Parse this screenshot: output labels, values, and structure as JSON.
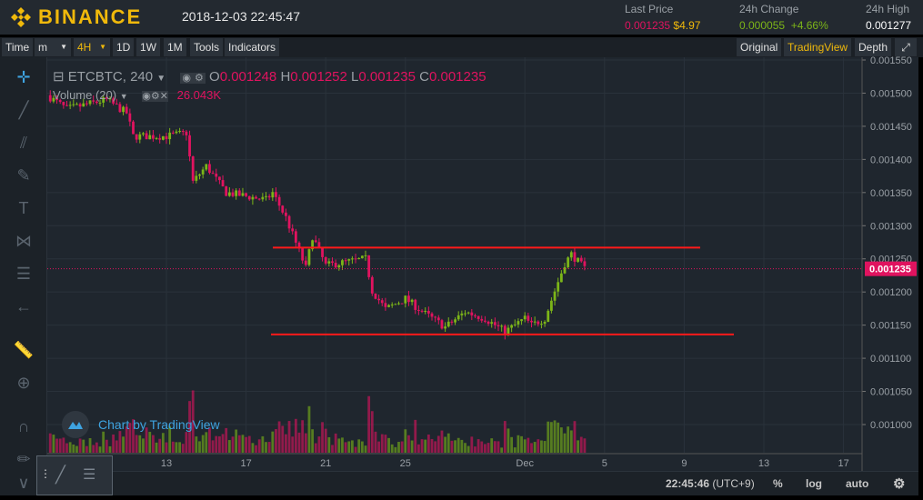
{
  "header": {
    "brand": "BINANCE",
    "datetime": "2018-12-03 22:45:47",
    "last_price": {
      "label": "Last Price",
      "value": "0.001235",
      "usd": "$4.97"
    },
    "change": {
      "label": "24h Change",
      "value": "0.000055",
      "pct": "+4.66%"
    },
    "high": {
      "label": "24h High",
      "value": "0.001277"
    }
  },
  "toolbar": {
    "left": [
      "Time",
      "m",
      "4H",
      "1D",
      "1W",
      "1M",
      "Tools",
      "Indicators"
    ],
    "active": "4H",
    "right": [
      "Original",
      "TradingView",
      "Depth"
    ],
    "right_active": "TradingView"
  },
  "legend": {
    "symbol": "ETCBTC, 240",
    "o_label": "O",
    "o": "0.001248",
    "h_label": "H",
    "h": "0.001252",
    "l_label": "L",
    "l": "0.001235",
    "c_label": "C",
    "c": "0.001235",
    "volume_label": "Volume (20)",
    "volume_value": "26.043K"
  },
  "watermark": "Chart by TradingView",
  "bottom": {
    "time": "22:45:46",
    "tz": "(UTC+9)",
    "pct": "%",
    "log": "log",
    "auto": "auto"
  },
  "colors": {
    "up": "#7cb518",
    "down": "#e0135f",
    "bg": "#1f262e",
    "accent": "#f0b90b",
    "hline": "#ff1a1a"
  },
  "chart_data": {
    "type": "candlestick",
    "interval": "4H",
    "price_ticks": [
      "0.001550",
      "0.001500",
      "0.001450",
      "0.001400",
      "0.001350",
      "0.001300",
      "0.001250",
      "0.001200",
      "0.001150",
      "0.001100",
      "0.001050",
      "0.001000"
    ],
    "ylim": [
      0.001,
      0.00155
    ],
    "time_ticks": [
      "13",
      "17",
      "21",
      "25",
      "Dec",
      "5",
      "9",
      "13",
      "17"
    ],
    "last_price": "0.001235",
    "horizontal_lines": [
      0.001267,
      0.001136
    ],
    "close_path": [
      [
        "2018-11-07",
        0.001497
      ],
      [
        "2018-11-08",
        0.001476
      ],
      [
        "2018-11-10",
        0.00149
      ],
      [
        "2018-11-11",
        0.00147
      ],
      [
        "2018-11-11",
        0.001435
      ],
      [
        "2018-11-13",
        0.001435
      ],
      [
        "2018-11-14",
        0.00144
      ],
      [
        "2018-11-14",
        0.001366
      ],
      [
        "2018-11-15",
        0.00139
      ],
      [
        "2018-11-16",
        0.00135
      ],
      [
        "2018-11-18",
        0.001339
      ],
      [
        "2018-11-18",
        0.00135
      ],
      [
        "2018-11-19",
        0.001312
      ],
      [
        "2018-11-20",
        0.001236
      ],
      [
        "2018-11-20",
        0.001284
      ],
      [
        "2018-11-21",
        0.00124
      ],
      [
        "2018-11-23",
        0.00125
      ],
      [
        "2018-11-23",
        0.001202
      ],
      [
        "2018-11-24",
        0.001174
      ],
      [
        "2018-11-25",
        0.00119
      ],
      [
        "2018-11-26",
        0.001167
      ],
      [
        "2018-11-27",
        0.001147
      ],
      [
        "2018-11-28",
        0.00117
      ],
      [
        "2018-11-29",
        0.00116
      ],
      [
        "2018-11-30",
        0.00114
      ],
      [
        "2018-12-01",
        0.00116
      ],
      [
        "2018-12-01",
        0.00115
      ],
      [
        "2018-12-02",
        0.00116
      ],
      [
        "2018-12-03",
        0.001243
      ],
      [
        "2018-12-03",
        0.001257
      ],
      [
        "2018-12-04",
        0.001235
      ]
    ]
  }
}
